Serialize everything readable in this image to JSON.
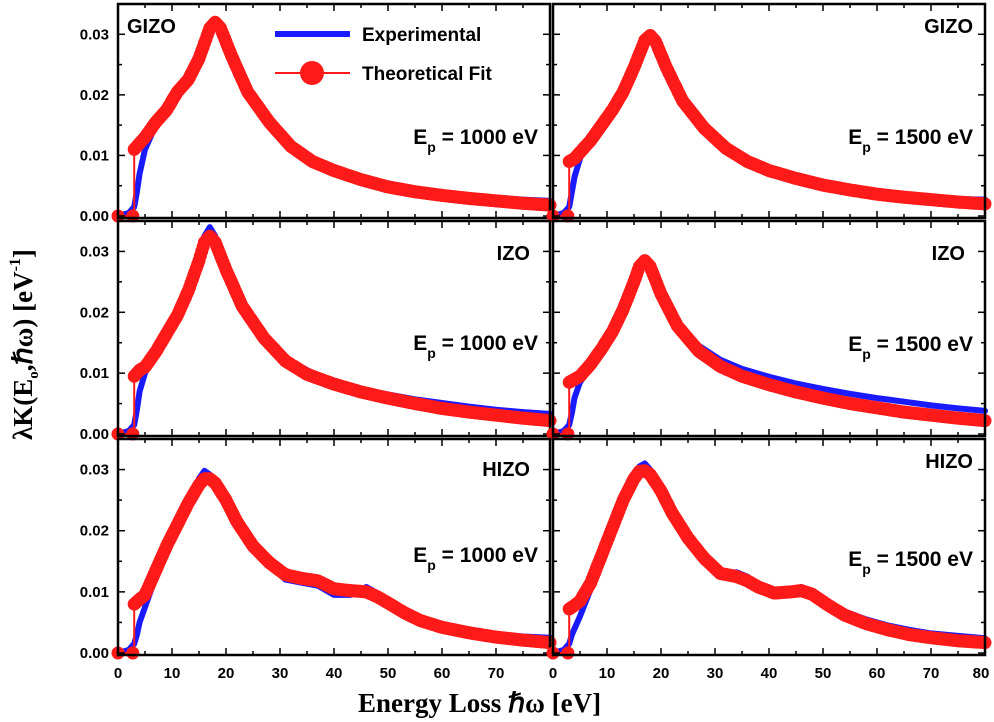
{
  "chart_data": {
    "type": "line",
    "layout": "3x2 panel grid, shared axes",
    "xlabel": "Energy Loss ℏω [eV]",
    "ylabel": "λK(E₀,ℏω) [eV⁻¹]",
    "ylabel_parts": {
      "main": "λK(E",
      "sub": "o",
      "mid": ",ℏω) [eV",
      "sup": "-1",
      "end": "]"
    },
    "xlim": [
      0,
      80
    ],
    "ylim": [
      0,
      0.035
    ],
    "x_ticks": [
      "0",
      "10",
      "20",
      "30",
      "40",
      "50",
      "60",
      "70",
      "80"
    ],
    "x_ticks_left": [
      "0",
      "10",
      "20",
      "30",
      "40",
      "50",
      "60",
      "70"
    ],
    "y_ticks": [
      "0.00",
      "0.01",
      "0.02",
      "0.03"
    ],
    "grid": false,
    "legend_position": "top (upper-left panel)",
    "legend": [
      {
        "name": "Experimental",
        "color": "#1a1aff",
        "style": "line"
      },
      {
        "name": "Theoretical Fit",
        "color": "#ff1a1a",
        "style": "line-marker"
      }
    ],
    "panels": [
      {
        "row": 0,
        "col": 0,
        "material": "GIZO",
        "ep_prefix": "E",
        "ep_sub": "p",
        "ep_value": "= 1000 eV",
        "series": [
          {
            "name": "Experimental",
            "x": [
              0,
              2,
              3,
              3.5,
              4,
              5,
              7,
              9,
              11,
              13,
              15,
              17,
              18,
              19,
              21,
              24,
              28,
              32,
              36,
              40,
              45,
              50,
              55,
              60,
              65,
              70,
              75,
              80
            ],
            "y": [
              0,
              0.0005,
              0.0015,
              0.004,
              0.007,
              0.011,
              0.015,
              0.017,
              0.021,
              0.023,
              0.027,
              0.031,
              0.032,
              0.031,
              0.026,
              0.021,
              0.0155,
              0.0115,
              0.0092,
              0.0078,
              0.0064,
              0.0054,
              0.0045,
              0.0039,
              0.0034,
              0.003,
              0.0027,
              0.0025
            ]
          },
          {
            "name": "Theoretical Fit",
            "x": [
              0,
              2,
              3,
              3,
              4,
              5,
              7,
              9,
              11,
              13,
              15,
              17,
              18,
              19,
              21,
              24,
              28,
              32,
              36,
              40,
              45,
              50,
              55,
              60,
              65,
              70,
              75,
              80
            ],
            "y": [
              0,
              0,
              0,
              0.011,
              0.012,
              0.013,
              0.0155,
              0.0175,
              0.0205,
              0.0225,
              0.026,
              0.031,
              0.032,
              0.031,
              0.0265,
              0.0205,
              0.0155,
              0.0115,
              0.009,
              0.0075,
              0.006,
              0.0048,
              0.004,
              0.0034,
              0.0029,
              0.0025,
              0.0021,
              0.0018
            ]
          }
        ]
      },
      {
        "row": 0,
        "col": 1,
        "material": "GIZO",
        "ep_prefix": "E",
        "ep_sub": "p",
        "ep_value": "= 1500 eV",
        "series": [
          {
            "name": "Experimental",
            "x": [
              0,
              2,
              3,
              3.5,
              4,
              5,
              7,
              9,
              11,
              13,
              15,
              17,
              18,
              19,
              21,
              24,
              28,
              32,
              36,
              40,
              45,
              50,
              55,
              60,
              65,
              70,
              75,
              80
            ],
            "y": [
              0,
              0.0005,
              0.0015,
              0.004,
              0.0065,
              0.0095,
              0.013,
              0.0155,
              0.018,
              0.021,
              0.025,
              0.029,
              0.0295,
              0.0285,
              0.0245,
              0.0195,
              0.015,
              0.0115,
              0.0093,
              0.0078,
              0.0065,
              0.0055,
              0.0047,
              0.004,
              0.0035,
              0.0031,
              0.0028,
              0.0027
            ]
          },
          {
            "name": "Theoretical Fit",
            "x": [
              0,
              2,
              3,
              3,
              4,
              5,
              7,
              9,
              11,
              13,
              15,
              17,
              18,
              19,
              21,
              24,
              28,
              32,
              36,
              40,
              45,
              50,
              55,
              60,
              65,
              70,
              75,
              80
            ],
            "y": [
              0,
              0,
              0,
              0.009,
              0.0095,
              0.0105,
              0.0125,
              0.015,
              0.0175,
              0.0205,
              0.0245,
              0.029,
              0.0298,
              0.0288,
              0.0245,
              0.019,
              0.0145,
              0.0112,
              0.009,
              0.0075,
              0.0062,
              0.0051,
              0.0043,
              0.0036,
              0.0031,
              0.0027,
              0.0023,
              0.002
            ]
          }
        ]
      },
      {
        "row": 1,
        "col": 0,
        "material": "IZO",
        "ep_prefix": "E",
        "ep_sub": "p",
        "ep_value": "= 1000 eV",
        "series": [
          {
            "name": "Experimental",
            "x": [
              0,
              2,
              3,
              3.5,
              4,
              5,
              7,
              9,
              11,
              13,
              15,
              16,
              17,
              18,
              20,
              23,
              27,
              31,
              35,
              40,
              45,
              50,
              55,
              60,
              65,
              70,
              75,
              80
            ],
            "y": [
              0,
              0.0005,
              0.0015,
              0.004,
              0.007,
              0.01,
              0.0135,
              0.017,
              0.0205,
              0.024,
              0.029,
              0.0325,
              0.034,
              0.0325,
              0.027,
              0.0215,
              0.016,
              0.0125,
              0.0105,
              0.0085,
              0.0073,
              0.0065,
              0.0057,
              0.0051,
              0.0045,
              0.004,
              0.0036,
              0.0033
            ]
          },
          {
            "name": "Theoretical Fit",
            "x": [
              0,
              2,
              3,
              3,
              4,
              5,
              7,
              9,
              11,
              13,
              15,
              16,
              17,
              18,
              20,
              23,
              27,
              31,
              35,
              40,
              45,
              50,
              55,
              60,
              65,
              70,
              75,
              80
            ],
            "y": [
              0,
              0,
              0,
              0.0095,
              0.0105,
              0.011,
              0.0135,
              0.0165,
              0.0195,
              0.0235,
              0.0285,
              0.0315,
              0.0325,
              0.0315,
              0.027,
              0.021,
              0.0158,
              0.012,
              0.0098,
              0.0082,
              0.0069,
              0.0059,
              0.005,
              0.0042,
              0.0036,
              0.0031,
              0.0026,
              0.0022
            ]
          }
        ]
      },
      {
        "row": 1,
        "col": 1,
        "material": "IZO",
        "ep_prefix": "E",
        "ep_sub": "p",
        "ep_value": "= 1500 eV",
        "series": [
          {
            "name": "Experimental",
            "x": [
              0,
              2,
              3,
              3.5,
              4,
              5,
              7,
              9,
              11,
              13,
              15,
              16,
              17,
              18,
              20,
              23,
              27,
              31,
              35,
              40,
              45,
              50,
              55,
              60,
              65,
              70,
              75,
              80
            ],
            "y": [
              0,
              0.0005,
              0.0015,
              0.0035,
              0.006,
              0.0085,
              0.011,
              0.0135,
              0.0165,
              0.02,
              0.0245,
              0.027,
              0.029,
              0.028,
              0.0235,
              0.0185,
              0.0145,
              0.0122,
              0.0107,
              0.0094,
              0.0083,
              0.0074,
              0.0066,
              0.0059,
              0.0053,
              0.0047,
              0.0042,
              0.0038
            ]
          },
          {
            "name": "Theoretical Fit",
            "x": [
              0,
              2,
              3,
              3,
              4,
              5,
              7,
              9,
              11,
              13,
              15,
              16,
              17,
              18,
              20,
              23,
              27,
              31,
              35,
              40,
              45,
              50,
              55,
              60,
              65,
              70,
              75,
              80
            ],
            "y": [
              0,
              0,
              0,
              0.0085,
              0.009,
              0.0095,
              0.0115,
              0.014,
              0.0168,
              0.0205,
              0.025,
              0.0275,
              0.0285,
              0.0275,
              0.023,
              0.0178,
              0.0136,
              0.0111,
              0.0095,
              0.0081,
              0.0069,
              0.0059,
              0.005,
              0.0043,
              0.0036,
              0.0031,
              0.0026,
              0.0022
            ]
          }
        ]
      },
      {
        "row": 2,
        "col": 0,
        "material": "HIZO",
        "ep_prefix": "E",
        "ep_sub": "p",
        "ep_value": "= 1000 eV",
        "series": [
          {
            "name": "Experimental",
            "x": [
              0,
              2,
              3,
              3.5,
              4,
              5,
              7,
              9,
              11,
              13,
              15,
              16,
              17,
              18,
              20,
              22,
              25,
              28,
              31,
              34,
              37,
              40,
              43,
              46,
              48,
              50,
              53,
              56,
              60,
              65,
              70,
              75,
              80
            ],
            "y": [
              0,
              0.0005,
              0.0015,
              0.003,
              0.005,
              0.0075,
              0.0125,
              0.017,
              0.021,
              0.025,
              0.0285,
              0.0298,
              0.0292,
              0.028,
              0.025,
              0.021,
              0.017,
              0.0145,
              0.012,
              0.0115,
              0.011,
              0.0095,
              0.0095,
              0.0108,
              0.0098,
              0.0085,
              0.0068,
              0.0055,
              0.0045,
              0.0037,
              0.0031,
              0.0027,
              0.0025
            ]
          },
          {
            "name": "Theoretical Fit",
            "x": [
              0,
              2,
              3,
              3,
              4,
              5,
              7,
              9,
              11,
              13,
              15,
              16,
              17,
              18,
              20,
              22,
              25,
              28,
              31,
              34,
              37,
              40,
              43,
              46,
              48,
              50,
              53,
              56,
              60,
              65,
              70,
              75,
              80
            ],
            "y": [
              0,
              0,
              0,
              0.008,
              0.0088,
              0.0095,
              0.0135,
              0.0175,
              0.021,
              0.0245,
              0.0275,
              0.0285,
              0.0285,
              0.0278,
              0.025,
              0.0215,
              0.0175,
              0.0148,
              0.0128,
              0.0122,
              0.0118,
              0.0105,
              0.0102,
              0.01,
              0.0092,
              0.0082,
              0.0066,
              0.0053,
              0.0042,
              0.0033,
              0.0026,
              0.0021,
              0.0017
            ]
          }
        ]
      },
      {
        "row": 2,
        "col": 1,
        "material": "HIZO",
        "ep_prefix": "E",
        "ep_sub": "p",
        "ep_value": "= 1500 eV",
        "series": [
          {
            "name": "Experimental",
            "x": [
              0,
              2,
              3,
              3.5,
              4,
              5,
              7,
              9,
              11,
              13,
              15,
              16,
              17,
              18,
              20,
              22,
              25,
              28,
              31,
              34,
              36,
              38,
              41,
              44,
              46,
              48,
              51,
              54,
              58,
              62,
              66,
              70,
              75,
              80
            ],
            "y": [
              0,
              0.0005,
              0.0015,
              0.003,
              0.004,
              0.006,
              0.0105,
              0.015,
              0.02,
              0.025,
              0.029,
              0.0305,
              0.031,
              0.03,
              0.027,
              0.0235,
              0.019,
              0.0158,
              0.013,
              0.0132,
              0.0125,
              0.011,
              0.0096,
              0.0102,
              0.0108,
              0.0098,
              0.0082,
              0.0068,
              0.0055,
              0.0045,
              0.0038,
              0.0032,
              0.0028,
              0.0024
            ]
          },
          {
            "name": "Theoretical Fit",
            "x": [
              0,
              2,
              3,
              3,
              4,
              5,
              7,
              9,
              11,
              13,
              15,
              16,
              17,
              18,
              20,
              22,
              25,
              28,
              31,
              34,
              36,
              38,
              41,
              44,
              46,
              48,
              51,
              54,
              58,
              62,
              66,
              70,
              75,
              80
            ],
            "y": [
              0,
              0,
              0,
              0.0072,
              0.0078,
              0.0085,
              0.0115,
              0.016,
              0.0205,
              0.025,
              0.0285,
              0.0297,
              0.0298,
              0.0292,
              0.0265,
              0.023,
              0.0188,
              0.0155,
              0.013,
              0.0125,
              0.0118,
              0.0108,
              0.0098,
              0.01,
              0.0102,
              0.0096,
              0.0078,
              0.0062,
              0.0048,
              0.0038,
              0.003,
              0.0025,
              0.002,
              0.0017
            ]
          }
        ]
      }
    ]
  }
}
